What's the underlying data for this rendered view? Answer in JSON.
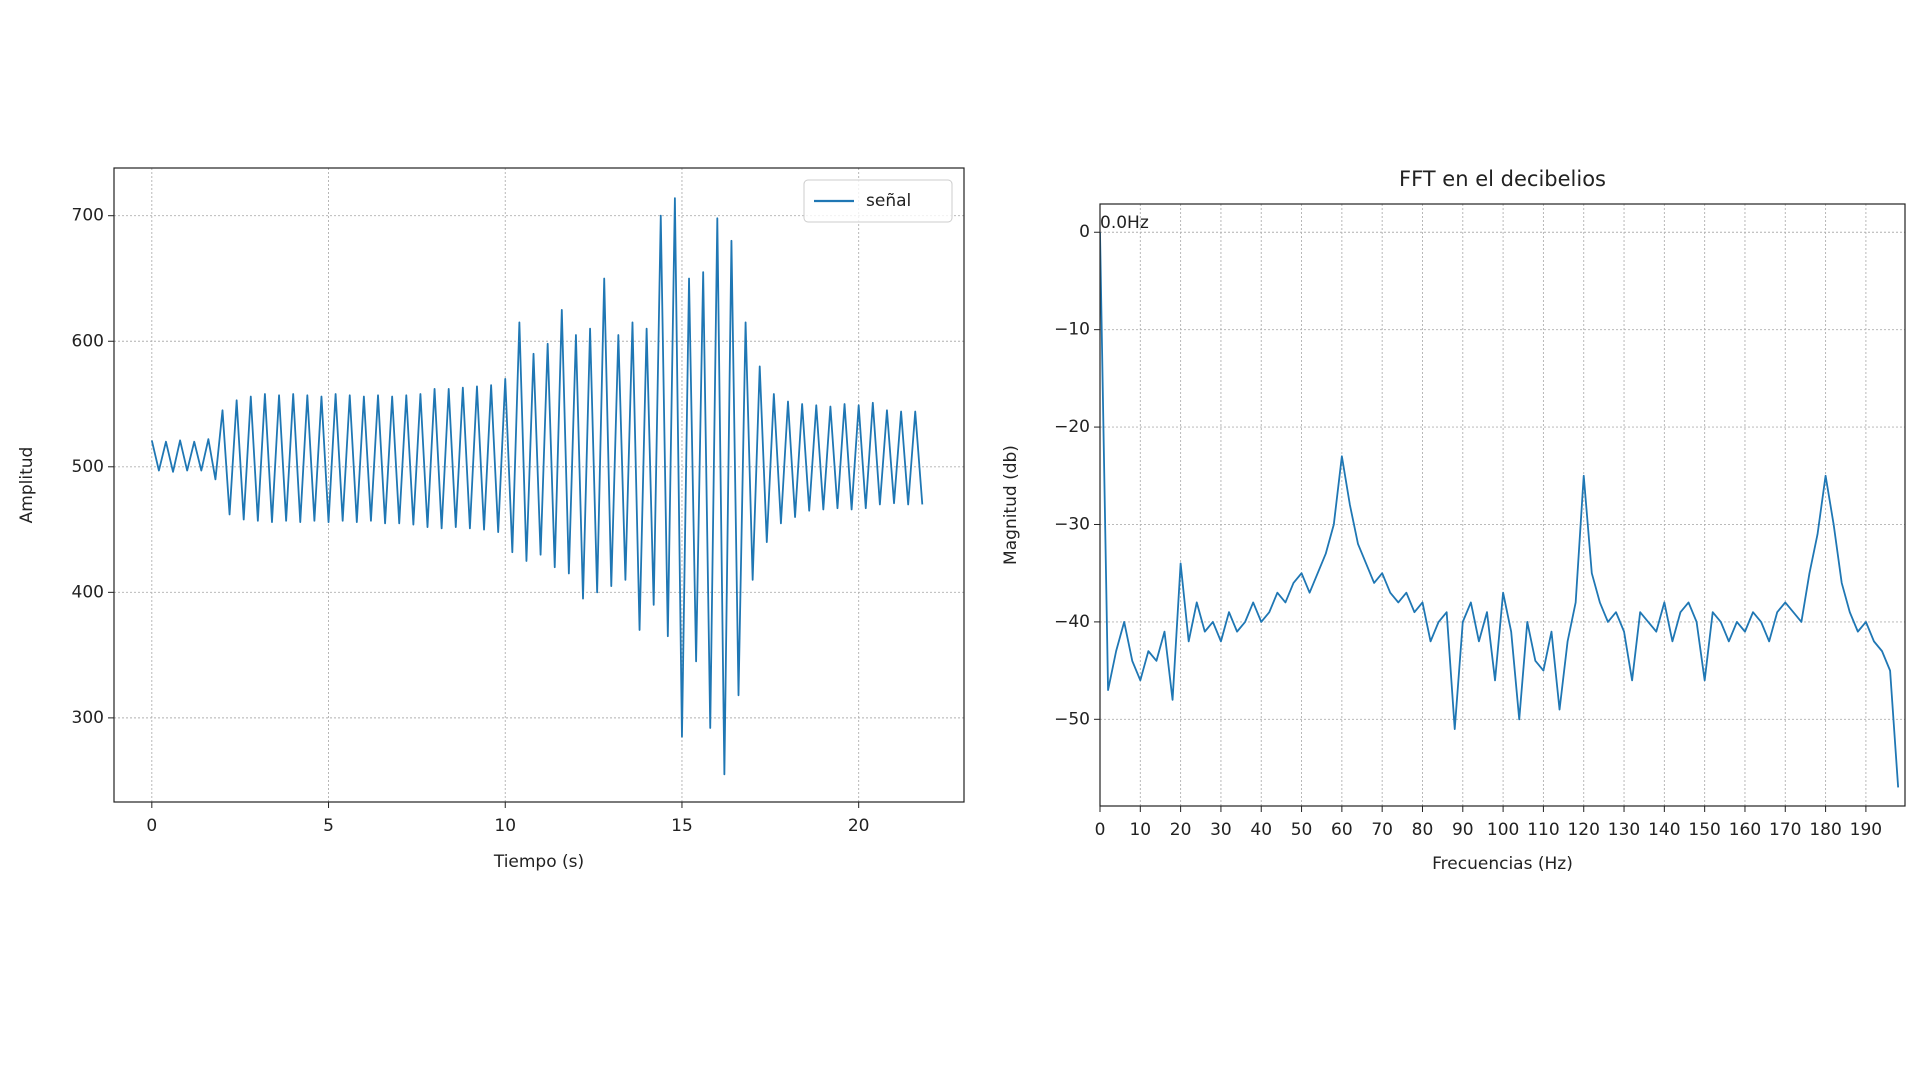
{
  "chart_data": [
    {
      "type": "line",
      "xlabel": "Tiempo (s)",
      "ylabel": "Amplitud",
      "x": [
        0,
        0.2,
        0.4,
        0.6,
        0.8,
        1.0,
        1.2,
        1.4,
        1.6,
        1.8,
        2.0,
        2.2,
        2.4,
        2.6,
        2.8,
        3.0,
        3.2,
        3.4,
        3.6,
        3.8,
        4.0,
        4.2,
        4.4,
        4.6,
        4.8,
        5.0,
        5.2,
        5.4,
        5.6,
        5.8,
        6.0,
        6.2,
        6.4,
        6.6,
        6.8,
        7.0,
        7.2,
        7.4,
        7.6,
        7.8,
        8.0,
        8.2,
        8.4,
        8.6,
        8.8,
        9.0,
        9.2,
        9.4,
        9.6,
        9.8,
        10.0,
        10.2,
        10.4,
        10.6,
        10.8,
        11.0,
        11.2,
        11.4,
        11.6,
        11.8,
        12.0,
        12.2,
        12.4,
        12.6,
        12.8,
        13.0,
        13.2,
        13.4,
        13.6,
        13.8,
        14.0,
        14.2,
        14.4,
        14.6,
        14.8,
        15.0,
        15.2,
        15.4,
        15.6,
        15.8,
        16.0,
        16.2,
        16.4,
        16.6,
        16.8,
        17.0,
        17.2,
        17.4,
        17.6,
        17.8,
        18.0,
        18.2,
        18.4,
        18.6,
        18.8,
        19.0,
        19.2,
        19.4,
        19.6,
        19.8,
        20.0,
        20.2,
        20.4,
        20.6,
        20.8,
        21.0,
        21.2,
        21.4,
        21.6,
        21.8
      ],
      "series": [
        {
          "name": "señal",
          "color": "#1f77b4",
          "values": [
            521,
            497,
            520,
            496,
            521,
            497,
            520,
            497,
            522,
            490,
            545,
            462,
            553,
            458,
            556,
            457,
            558,
            456,
            557,
            457,
            558,
            456,
            557,
            457,
            556,
            456,
            558,
            457,
            557,
            456,
            556,
            457,
            557,
            455,
            556,
            455,
            557,
            454,
            558,
            452,
            562,
            451,
            562,
            452,
            563,
            451,
            564,
            450,
            565,
            448,
            570,
            432,
            615,
            425,
            590,
            430,
            598,
            420,
            625,
            415,
            605,
            395,
            610,
            400,
            650,
            405,
            605,
            410,
            615,
            370,
            610,
            390,
            700,
            365,
            714,
            285,
            650,
            345,
            655,
            292,
            698,
            255,
            680,
            318,
            615,
            410,
            580,
            440,
            558,
            455,
            552,
            460,
            550,
            465,
            549,
            466,
            548,
            467,
            550,
            466,
            549,
            467,
            551,
            470,
            545,
            471,
            544,
            470,
            544,
            470
          ]
        }
      ],
      "xlim": [
        -1.07,
        22.98
      ],
      "xticks": [
        0,
        5,
        10,
        15,
        20
      ],
      "ylim": [
        233,
        738
      ],
      "yticks": [
        300,
        400,
        500,
        600,
        700
      ],
      "grid": true,
      "legend": "upper-right"
    },
    {
      "type": "line",
      "title": "FFT en el decibelios",
      "xlabel": "Frecuencias (Hz)",
      "ylabel": "Magnitud (db)",
      "x": [
        0,
        2,
        4,
        6,
        8,
        10,
        12,
        14,
        16,
        18,
        20,
        22,
        24,
        26,
        28,
        30,
        32,
        34,
        36,
        38,
        40,
        42,
        44,
        46,
        48,
        50,
        52,
        54,
        56,
        58,
        60,
        62,
        64,
        66,
        68,
        70,
        72,
        74,
        76,
        78,
        80,
        82,
        84,
        86,
        88,
        90,
        92,
        94,
        96,
        98,
        100,
        102,
        104,
        106,
        108,
        110,
        112,
        114,
        116,
        118,
        120,
        122,
        124,
        126,
        128,
        130,
        132,
        134,
        136,
        138,
        140,
        142,
        144,
        146,
        148,
        150,
        152,
        154,
        156,
        158,
        160,
        162,
        164,
        166,
        168,
        170,
        172,
        174,
        176,
        178,
        180,
        182,
        184,
        186,
        188,
        190,
        192,
        194,
        196,
        198
      ],
      "series": [
        {
          "color": "#1f77b4",
          "values": [
            0,
            -47,
            -43,
            -40,
            -44,
            -46,
            -43,
            -44,
            -41,
            -48,
            -34,
            -42,
            -38,
            -41,
            -40,
            -42,
            -39,
            -41,
            -40,
            -38,
            -40,
            -39,
            -37,
            -38,
            -36,
            -35,
            -37,
            -35,
            -33,
            -30,
            -23,
            -28,
            -32,
            -34,
            -36,
            -35,
            -37,
            -38,
            -37,
            -39,
            -38,
            -42,
            -40,
            -39,
            -51,
            -40,
            -38,
            -42,
            -39,
            -46,
            -37,
            -41,
            -50,
            -40,
            -44,
            -45,
            -41,
            -49,
            -42,
            -38,
            -25,
            -35,
            -38,
            -40,
            -39,
            -41,
            -46,
            -39,
            -40,
            -41,
            -38,
            -42,
            -39,
            -38,
            -40,
            -46,
            -39,
            -40,
            -42,
            -40,
            -41,
            -39,
            -40,
            -42,
            -39,
            -38,
            -39,
            -40,
            -35,
            -31,
            -25,
            -30,
            -36,
            -39,
            -41,
            -40,
            -42,
            -43,
            -45,
            -57
          ]
        }
      ],
      "annotations": [
        {
          "text": "0.0Hz",
          "x": 0,
          "y": 0
        }
      ],
      "xlim": [
        0,
        199.7
      ],
      "xticks": [
        0,
        10,
        20,
        30,
        40,
        50,
        60,
        70,
        80,
        90,
        100,
        110,
        120,
        130,
        140,
        150,
        160,
        170,
        180,
        190
      ],
      "ylim": [
        -58.9,
        2.9
      ],
      "yticks": [
        0,
        {
          "value": -10,
          "label": "−10"
        },
        {
          "value": -20,
          "label": "−20"
        },
        {
          "value": -30,
          "label": "−30"
        },
        {
          "value": -40,
          "label": "−40"
        },
        {
          "value": -50,
          "label": "−50"
        }
      ],
      "grid": true
    }
  ]
}
